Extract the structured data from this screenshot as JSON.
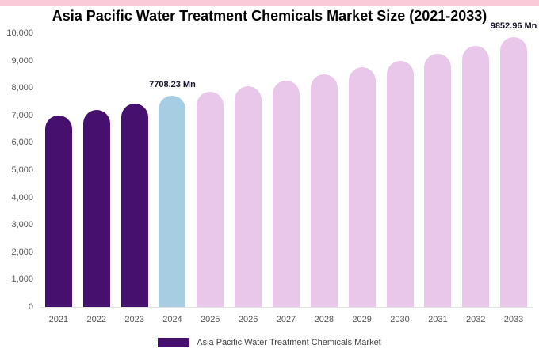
{
  "chart_data": {
    "type": "bar",
    "title": "Asia Pacific Water Treatment Chemicals Market Size (2021-2033)",
    "xlabel": "",
    "ylabel": "",
    "ylim": [
      0,
      10000
    ],
    "grid": false,
    "categories": [
      "2021",
      "2022",
      "2023",
      "2024",
      "2025",
      "2026",
      "2027",
      "2028",
      "2029",
      "2030",
      "2031",
      "2032",
      "2033"
    ],
    "values": [
      7000,
      7200,
      7420,
      7708.23,
      7850,
      8070,
      8280,
      8510,
      8750,
      9000,
      9240,
      9540,
      9852.96
    ],
    "color_groups": [
      "historical",
      "historical",
      "historical",
      "current",
      "forecast",
      "forecast",
      "forecast",
      "forecast",
      "forecast",
      "forecast",
      "forecast",
      "forecast",
      "forecast"
    ],
    "y_ticks": [
      "0",
      "1,000",
      "2,000",
      "3,000",
      "4,000",
      "5,000",
      "6,000",
      "7,000",
      "8,000",
      "9,000",
      "10,000"
    ],
    "annotations": [
      {
        "category": "2024",
        "text": "7708.23 Mn"
      },
      {
        "category": "2033",
        "text": "9852.96 Mn"
      }
    ],
    "legend_position": "bottom"
  },
  "colors": {
    "historical": "#45106e",
    "current": "#a7cde2",
    "forecast": "#e8c7ea",
    "top_strip": "#f9cad7"
  },
  "legend": {
    "label": "Asia Pacific Water Treatment Chemicals Market"
  }
}
